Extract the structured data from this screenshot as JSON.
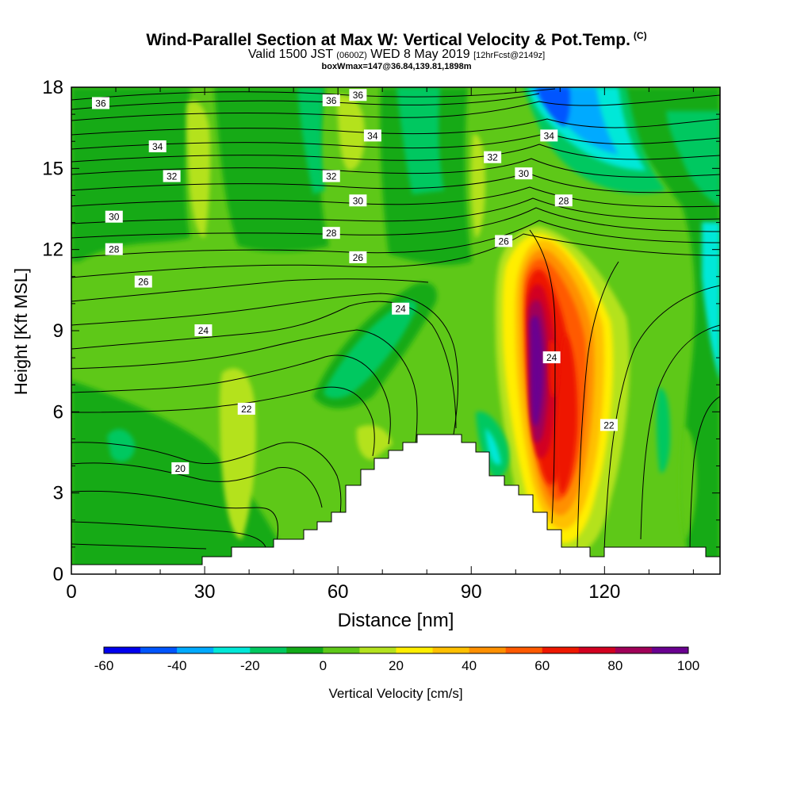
{
  "title": {
    "main": "Wind-Parallel Section at Max W: Vertical Velocity & Pot.Temp.",
    "units_tag": "(C)",
    "valid_prefix": "Valid 1500 JST",
    "valid_utc": "(0600Z)",
    "valid_date": "WED 8 May 2019",
    "forecast_tag": "[12hrFcst@2149z]",
    "box_info": "boxWmax=147@36.84,139.81,1898m"
  },
  "chart_data": {
    "type": "heatmap",
    "xlabel": "Distance [nm]",
    "ylabel": "Height [Kft MSL]",
    "xlim": [
      0,
      146
    ],
    "ylim": [
      0,
      18
    ],
    "x_ticks": [
      "0",
      "30",
      "60",
      "90",
      "120"
    ],
    "y_ticks": [
      "0",
      "3",
      "6",
      "9",
      "12",
      "15",
      "18"
    ],
    "grid": false,
    "colorbar": {
      "label": "Vertical Velocity [cm/s]",
      "placement": "bottom",
      "tick_labels": [
        "-60",
        "-40",
        "-20",
        "0",
        "20",
        "40",
        "60",
        "80",
        "100"
      ],
      "colors": [
        "#0000ee",
        "#0055ff",
        "#00aaff",
        "#00e8d8",
        "#00c860",
        "#12aa18",
        "#5ec818",
        "#b4e21e",
        "#ffee00",
        "#ffc000",
        "#ff9000",
        "#ff5a00",
        "#ee1800",
        "#d20020",
        "#a00058",
        "#6a0090"
      ]
    },
    "isotherm_labels": [
      {
        "text": "36",
        "x": 6.6,
        "y": 17.4
      },
      {
        "text": "36",
        "x": 58.5,
        "y": 17.5
      },
      {
        "text": "36",
        "x": 64.5,
        "y": 17.7
      },
      {
        "text": "34",
        "x": 19.4,
        "y": 15.8
      },
      {
        "text": "34",
        "x": 67.8,
        "y": 16.2
      },
      {
        "text": "34",
        "x": 107.5,
        "y": 16.2
      },
      {
        "text": "32",
        "x": 22.6,
        "y": 14.7
      },
      {
        "text": "32",
        "x": 58.5,
        "y": 14.7
      },
      {
        "text": "32",
        "x": 94.8,
        "y": 15.4
      },
      {
        "text": "30",
        "x": 9.6,
        "y": 13.2
      },
      {
        "text": "30",
        "x": 64.5,
        "y": 13.8
      },
      {
        "text": "30",
        "x": 101.8,
        "y": 14.8
      },
      {
        "text": "28",
        "x": 9.6,
        "y": 12.0
      },
      {
        "text": "28",
        "x": 58.5,
        "y": 12.6
      },
      {
        "text": "28",
        "x": 110.8,
        "y": 13.8
      },
      {
        "text": "26",
        "x": 16.2,
        "y": 10.8
      },
      {
        "text": "26",
        "x": 64.5,
        "y": 11.7
      },
      {
        "text": "26",
        "x": 97.3,
        "y": 12.3
      },
      {
        "text": "24",
        "x": 29.7,
        "y": 9.0
      },
      {
        "text": "24",
        "x": 74.1,
        "y": 9.8
      },
      {
        "text": "24",
        "x": 108.1,
        "y": 8.0
      },
      {
        "text": "22",
        "x": 39.4,
        "y": 6.1
      },
      {
        "text": "22",
        "x": 121.0,
        "y": 5.5
      },
      {
        "text": "20",
        "x": 24.5,
        "y": 3.9
      }
    ]
  }
}
